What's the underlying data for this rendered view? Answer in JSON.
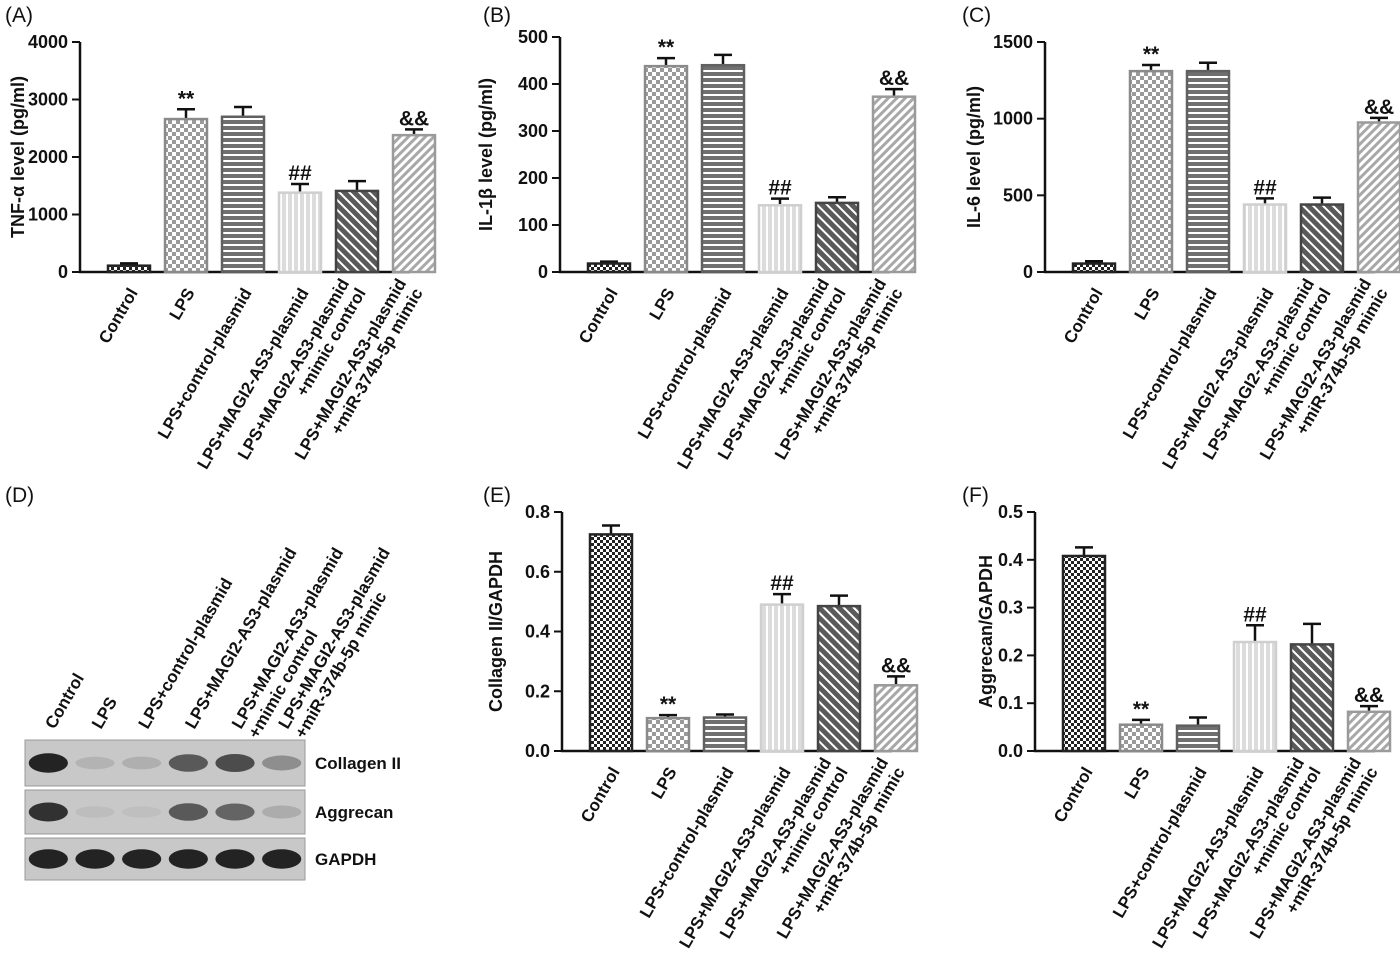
{
  "chart_data": [
    {
      "panel": "(A)",
      "type": "bar",
      "ylabel": "TNF-α level (pg/ml)",
      "ylim": [
        0,
        4000
      ],
      "yticks": [
        0,
        1000,
        2000,
        3000,
        4000
      ],
      "categories": [
        "Control",
        "LPS",
        "LPS+control-plasmid",
        "LPS+MAGI2-AS3-plasmid",
        "LPS+MAGI2-AS3-plasmid\n+mimic control",
        "LPS+MAGI2-AS3-plasmid\n+miR-374b-5p mimic"
      ],
      "values": [
        110,
        2660,
        2700,
        1380,
        1410,
        2380
      ],
      "errors": [
        40,
        170,
        170,
        150,
        170,
        100
      ],
      "annotations": [
        "",
        "**",
        "",
        "##",
        "",
        "&&"
      ]
    },
    {
      "panel": "(B)",
      "type": "bar",
      "ylabel": "IL-1β level (pg/ml)",
      "ylim": [
        0,
        500
      ],
      "yticks": [
        0,
        100,
        200,
        300,
        400,
        500
      ],
      "categories": [
        "Control",
        "LPS",
        "LPS+control-plasmid",
        "LPS+MAGI2-AS3-plasmid",
        "LPS+MAGI2-AS3-plasmid\n+mimic control",
        "LPS+MAGI2-AS3-plasmid\n+miR-374b-5p mimic"
      ],
      "values": [
        18,
        438,
        440,
        142,
        147,
        373
      ],
      "errors": [
        4,
        17,
        22,
        14,
        12,
        16
      ],
      "annotations": [
        "",
        "**",
        "",
        "##",
        "",
        "&&"
      ]
    },
    {
      "panel": "(C)",
      "type": "bar",
      "ylabel": "IL-6 level (pg/ml)",
      "ylim": [
        0,
        1500
      ],
      "yticks": [
        0,
        500,
        1000,
        1500
      ],
      "categories": [
        "Control",
        "LPS",
        "LPS+control-plasmid",
        "LPS+MAGI2-AS3-plasmid",
        "LPS+MAGI2-AS3-plasmid\n+mimic control",
        "LPS+MAGI2-AS3-plasmid\n+miR-374b-5p mimic"
      ],
      "values": [
        55,
        1310,
        1310,
        440,
        440,
        975
      ],
      "errors": [
        15,
        40,
        55,
        40,
        45,
        30
      ],
      "annotations": [
        "",
        "**",
        "",
        "##",
        "",
        "&&"
      ]
    },
    {
      "panel": "(E)",
      "type": "bar",
      "ylabel": "Collagen II/GAPDH",
      "ylim": [
        0,
        0.8
      ],
      "yticks": [
        0.0,
        0.2,
        0.4,
        0.6,
        0.8
      ],
      "categories": [
        "Control",
        "LPS",
        "LPS+control-plasmid",
        "LPS+MAGI2-AS3-plasmid",
        "LPS+MAGI2-AS3-plasmid\n+mimic control",
        "LPS+MAGI2-AS3-plasmid\n+miR-374b-5p mimic"
      ],
      "values": [
        0.725,
        0.11,
        0.112,
        0.49,
        0.485,
        0.22
      ],
      "errors": [
        0.03,
        0.01,
        0.01,
        0.035,
        0.035,
        0.03
      ],
      "annotations": [
        "",
        "**",
        "",
        "##",
        "",
        "&&"
      ]
    },
    {
      "panel": "(F)",
      "type": "bar",
      "ylabel": "Aggrecan/GAPDH",
      "ylim": [
        0,
        0.5
      ],
      "yticks": [
        0.0,
        0.1,
        0.2,
        0.3,
        0.4,
        0.5
      ],
      "categories": [
        "Control",
        "LPS",
        "LPS+control-plasmid",
        "LPS+MAGI2-AS3-plasmid",
        "LPS+MAGI2-AS3-plasmid\n+mimic control",
        "LPS+MAGI2-AS3-plasmid\n+miR-374b-5p mimic"
      ],
      "values": [
        0.408,
        0.055,
        0.053,
        0.228,
        0.223,
        0.082
      ],
      "errors": [
        0.018,
        0.01,
        0.017,
        0.035,
        0.043,
        0.012
      ],
      "annotations": [
        "",
        "**",
        "",
        "##",
        "",
        "&&"
      ]
    }
  ],
  "western_blot": {
    "panel": "(D)",
    "lanes": [
      "Control",
      "LPS",
      "LPS+control-plasmid",
      "LPS+MAGI2-AS3-plasmid",
      "LPS+MAGI2-AS3-plasmid\n+mimic control",
      "LPS+MAGI2-AS3-plasmid\n+miR-374b-5p mimic"
    ],
    "bands": [
      {
        "name": "Collagen II",
        "intensity": [
          0.95,
          0.25,
          0.28,
          0.75,
          0.8,
          0.5
        ]
      },
      {
        "name": "Aggrecan",
        "intensity": [
          0.9,
          0.15,
          0.12,
          0.75,
          0.7,
          0.3
        ]
      },
      {
        "name": "GAPDH",
        "intensity": [
          0.95,
          0.95,
          0.95,
          0.95,
          0.95,
          0.95
        ]
      }
    ]
  },
  "colors": {
    "control": "#222222",
    "lps": "#999999",
    "ctrl_plasmid": "#6e6e6e",
    "magi2": "#dcdcdc",
    "mimic_ctrl": "#555555",
    "mir": "#b0b0b0"
  }
}
